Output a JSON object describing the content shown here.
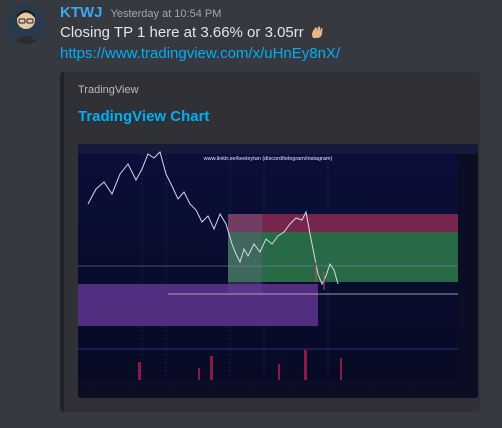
{
  "message": {
    "username": "KTWJ",
    "timestamp": "Yesterday at 10:54 PM",
    "text": "Closing TP 1 here at 3.66% or 3.05rr",
    "emoji": "waving-hand-icon",
    "link": "https://www.tradingview.com/x/uHnEy8nX/"
  },
  "embed": {
    "provider": "TradingView",
    "title": "TradingView Chart",
    "image": {
      "watermark": "www.linktr.ee/keeleytan (discord/telegram/instagram)"
    }
  },
  "colors": {
    "username": "#3ea8ef",
    "link": "#00aff4",
    "background": "#36393f",
    "embed_background": "#2f3136"
  }
}
